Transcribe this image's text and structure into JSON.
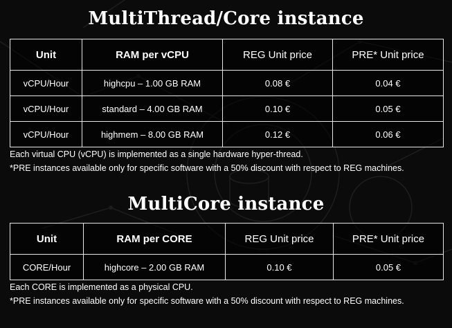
{
  "multithread": {
    "title": "MultiThread/Core instance",
    "headers": [
      "Unit",
      "RAM per vCPU",
      "REG Unit price",
      "PRE* Unit price"
    ],
    "rows": [
      [
        "vCPU/Hour",
        "highcpu – 1.00 GB RAM",
        "0.08 €",
        "0.04 €"
      ],
      [
        "vCPU/Hour",
        "standard – 4.00 GB RAM",
        "0.10 €",
        "0.05 €"
      ],
      [
        "vCPU/Hour",
        "highmem – 8.00 GB RAM",
        "0.12 €",
        "0.06 €"
      ]
    ],
    "notes": [
      "Each virtual CPU (vCPU) is implemented as a single hardware hyper-thread.",
      "*PRE instances available only for specific software with a 50% discount with respect to REG machines."
    ]
  },
  "multicore": {
    "title": "MultiCore instance",
    "headers": [
      "Unit",
      "RAM per CORE",
      "REG Unit price",
      "PRE* Unit price"
    ],
    "rows": [
      [
        "CORE/Hour",
        "highcore – 2.00 GB RAM",
        "0.10 €",
        "0.05 €"
      ]
    ],
    "notes": [
      "Each CORE is implemented as a physical CPU.",
      "*PRE instances available only for specific software with a 50% discount with respect to REG machines."
    ]
  }
}
